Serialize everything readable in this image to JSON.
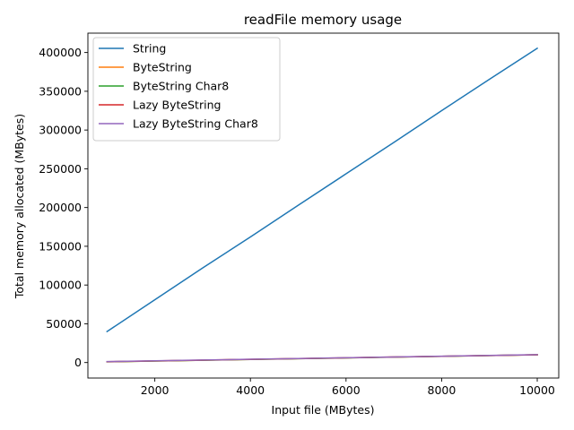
{
  "chart_data": {
    "type": "line",
    "title": "readFile memory usage",
    "xlabel": "Input file (MBytes)",
    "ylabel": "Total memory allocated (MBytes)",
    "xlim": [
      600,
      10450
    ],
    "ylim": [
      -20000,
      425000
    ],
    "xticks": [
      2000,
      4000,
      6000,
      8000,
      10000
    ],
    "yticks": [
      0,
      50000,
      100000,
      150000,
      200000,
      250000,
      300000,
      350000,
      400000
    ],
    "legend_position": "upper-left",
    "grid": false,
    "x": [
      1000,
      2000,
      3000,
      4000,
      5000,
      6000,
      7000,
      8000,
      9000,
      10000
    ],
    "series": [
      {
        "name": "String",
        "color": "#1f77b4",
        "values": [
          40000,
          81000,
          122000,
          162000,
          203000,
          243500,
          284000,
          325000,
          365500,
          405500
        ]
      },
      {
        "name": "ByteString",
        "color": "#ff7f0e",
        "values": [
          1000,
          2000,
          3000,
          4000,
          5000,
          6000,
          7000,
          8000,
          9000,
          10000
        ]
      },
      {
        "name": "ByteString Char8",
        "color": "#2ca02c",
        "values": [
          1000,
          2000,
          3000,
          4000,
          5000,
          6000,
          7000,
          8000,
          9000,
          10000
        ]
      },
      {
        "name": "Lazy ByteString",
        "color": "#d62728",
        "values": [
          1100,
          2100,
          3100,
          4100,
          5100,
          6100,
          7100,
          8100,
          9100,
          10100
        ]
      },
      {
        "name": "Lazy ByteString Char8",
        "color": "#9467bd",
        "values": [
          1200,
          2200,
          3200,
          4200,
          5200,
          6200,
          7200,
          8200,
          9200,
          10200
        ]
      }
    ]
  }
}
